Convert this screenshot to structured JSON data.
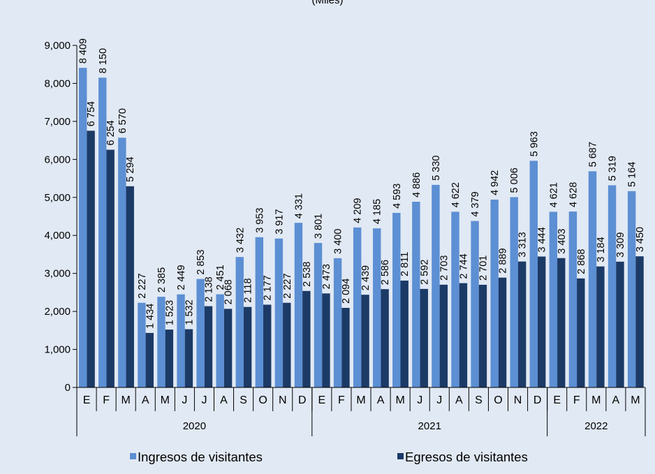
{
  "colors": {
    "background": "#e1e9f4",
    "ingresos": "#5c8fd3",
    "egresos": "#1c3a66",
    "axis": "#000000"
  },
  "chart_data": {
    "type": "bar",
    "title": "",
    "subtitle": "(Miles)",
    "xlabel": "",
    "ylabel": "",
    "ylim": [
      0,
      9000
    ],
    "yticks": [
      0,
      1000,
      2000,
      3000,
      4000,
      5000,
      6000,
      7000,
      8000,
      9000
    ],
    "ytick_labels": [
      "0",
      "1,000",
      "2,000",
      "3,000",
      "4,000",
      "5,000",
      "6,000",
      "7,000",
      "8,000",
      "9,000"
    ],
    "grid": false,
    "legend_position": "bottom",
    "categories": [
      "E",
      "F",
      "M",
      "A",
      "M",
      "J",
      "J",
      "A",
      "S",
      "O",
      "N",
      "D",
      "E",
      "F",
      "M",
      "A",
      "M",
      "J",
      "J",
      "A",
      "S",
      "O",
      "N",
      "D",
      "E",
      "F",
      "M",
      "A",
      "M"
    ],
    "groups": [
      {
        "label": "2020",
        "count": 12
      },
      {
        "label": "2021",
        "count": 12
      },
      {
        "label": "2022",
        "count": 5
      }
    ],
    "series": [
      {
        "name": "Ingresos de visitantes",
        "values": [
          8409,
          8150,
          6570,
          2227,
          2385,
          2449,
          2853,
          2451,
          3432,
          3953,
          3917,
          4331,
          3801,
          3400,
          4209,
          4185,
          4593,
          4886,
          5330,
          4622,
          4379,
          4942,
          5006,
          5963,
          4621,
          4628,
          5687,
          5319,
          5164
        ],
        "labels": [
          "8 409",
          "8 150",
          "6 570",
          "2 227",
          "2 385",
          "2 449",
          "2 853",
          "2 451",
          "3 432",
          "3 953",
          "3 917",
          "4 331",
          "3 801",
          "3 400",
          "4 209",
          "4 185",
          "4 593",
          "4 886",
          "5 330",
          "4 622",
          "4 379",
          "4 942",
          "5 006",
          "5 963",
          "4 621",
          "4 628",
          "5 687",
          "5 319",
          "5 164"
        ]
      },
      {
        "name": "Egresos de visitantes",
        "values": [
          6754,
          6254,
          5294,
          1434,
          1523,
          1532,
          2138,
          2068,
          2118,
          2177,
          2227,
          2538,
          2473,
          2094,
          2439,
          2586,
          2811,
          2592,
          2703,
          2744,
          2701,
          2889,
          3313,
          3444,
          3403,
          2868,
          3184,
          3309,
          3450
        ],
        "labels": [
          "6 754",
          "6 254",
          "5 294",
          "1 434",
          "1 523",
          "1 532",
          "2 138",
          "2 068",
          "2 118",
          "2 177",
          "2 227",
          "2 538",
          "2 473",
          "2 094",
          "2 439",
          "2 586",
          "2 811",
          "2 592",
          "2 703",
          "2 744",
          "2 701",
          "2 889",
          "3 313",
          "3 444",
          "3 403",
          "2 868",
          "3 184",
          "3 309",
          "3 450"
        ]
      }
    ]
  },
  "legend": {
    "ingresos_label": "Ingresos de visitantes",
    "egresos_label": "Egresos de visitantes"
  }
}
